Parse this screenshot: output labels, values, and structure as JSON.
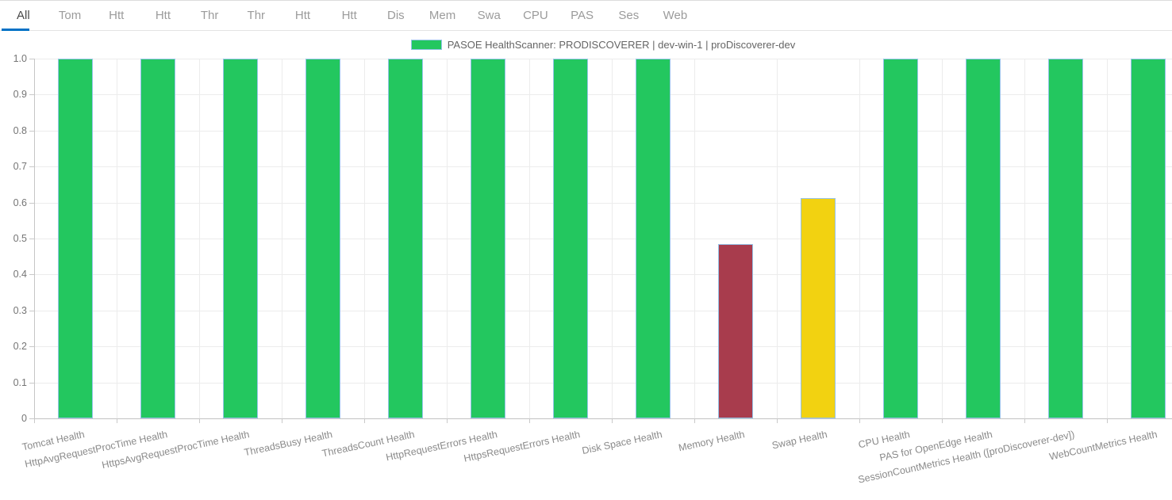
{
  "tabs": {
    "items": [
      {
        "label": "All",
        "active": true
      },
      {
        "label": "Tom",
        "active": false
      },
      {
        "label": "Htt",
        "active": false
      },
      {
        "label": "Htt",
        "active": false
      },
      {
        "label": "Thr",
        "active": false
      },
      {
        "label": "Thr",
        "active": false
      },
      {
        "label": "Htt",
        "active": false
      },
      {
        "label": "Htt",
        "active": false
      },
      {
        "label": "Dis",
        "active": false
      },
      {
        "label": "Mem",
        "active": false
      },
      {
        "label": "Swa",
        "active": false
      },
      {
        "label": "CPU",
        "active": false
      },
      {
        "label": "PAS",
        "active": false
      },
      {
        "label": "Ses",
        "active": false
      },
      {
        "label": "Web",
        "active": false
      }
    ],
    "active_underline_color": "#0071C5"
  },
  "chart_data": {
    "type": "bar",
    "title": "",
    "xlabel": "",
    "ylabel": "",
    "legend": "PASOE HealthScanner: PRODISCOVERER | dev-win-1 | proDiscoverer-dev",
    "legend_position": "top-center",
    "grid": true,
    "ylim": [
      0,
      1.0
    ],
    "ytick_step": 0.1,
    "ytick_labels": [
      "0",
      "0.1",
      "0.2",
      "0.3",
      "0.4",
      "0.5",
      "0.6",
      "0.7",
      "0.8",
      "0.9",
      "1.0"
    ],
    "categories": [
      "Tomcat Health",
      "HttpAvgRequestProcTime Health",
      "HttpsAvgRequestProcTime Health",
      "ThreadsBusy Health",
      "ThreadsCount Health",
      "HttpRequestErrors Health",
      "HttpsRequestErrors Health",
      "Disk Space Health",
      "Memory Health",
      "Swap Health",
      "CPU Health",
      "PAS for OpenEdge Health",
      "SessionCountMetrics Health ([proDiscoverer-dev])",
      "WebCountMetrics Health"
    ],
    "series": [
      {
        "name": "PASOE HealthScanner: PRODISCOVERER | dev-win-1 | proDiscoverer-dev",
        "values": [
          1.0,
          1.0,
          1.0,
          1.0,
          1.0,
          1.0,
          1.0,
          1.0,
          0.485,
          0.613,
          1.0,
          1.0,
          1.0,
          1.0
        ],
        "point_colors": [
          "#23C75F",
          "#23C75F",
          "#23C75F",
          "#23C75F",
          "#23C75F",
          "#23C75F",
          "#23C75F",
          "#23C75F",
          "#A83C4D",
          "#F2D211",
          "#23C75F",
          "#23C75F",
          "#23C75F",
          "#23C75F"
        ]
      }
    ],
    "colors": {
      "healthy": "#23C75F",
      "critical": "#A83C4D",
      "warning": "#F2D211",
      "bar_border": "#95C3E8",
      "gridline": "#ececec",
      "axis": "#c6c6c6"
    }
  }
}
